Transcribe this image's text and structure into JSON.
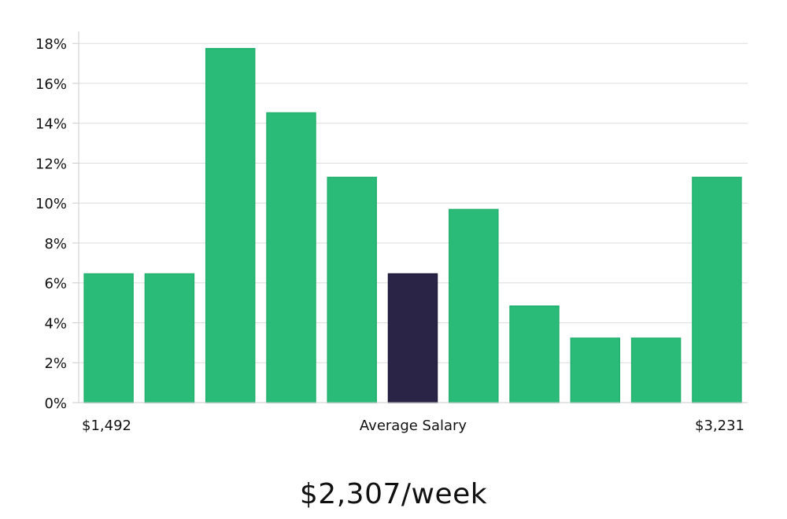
{
  "chart_data": {
    "type": "bar",
    "ylim": [
      0,
      18.6
    ],
    "y_ticks": [
      "0%",
      "2%",
      "4%",
      "6%",
      "8%",
      "10%",
      "12%",
      "14%",
      "16%",
      "18%"
    ],
    "y_tick_values": [
      0,
      2,
      4,
      6,
      8,
      10,
      12,
      14,
      16,
      18
    ],
    "values": [
      6.45,
      6.45,
      17.74,
      14.52,
      11.29,
      6.45,
      9.68,
      4.84,
      3.23,
      3.23,
      11.29
    ],
    "highlight_index": 5,
    "x_labels": {
      "left": "$1,492",
      "center": "Average Salary",
      "right": "$3,231"
    },
    "grid": true,
    "colors": {
      "bar": "#2bbb78",
      "highlight": "#2a2547",
      "grid": "#dddddd",
      "axis": "#cccccc"
    }
  },
  "salary": "$2,307/week"
}
